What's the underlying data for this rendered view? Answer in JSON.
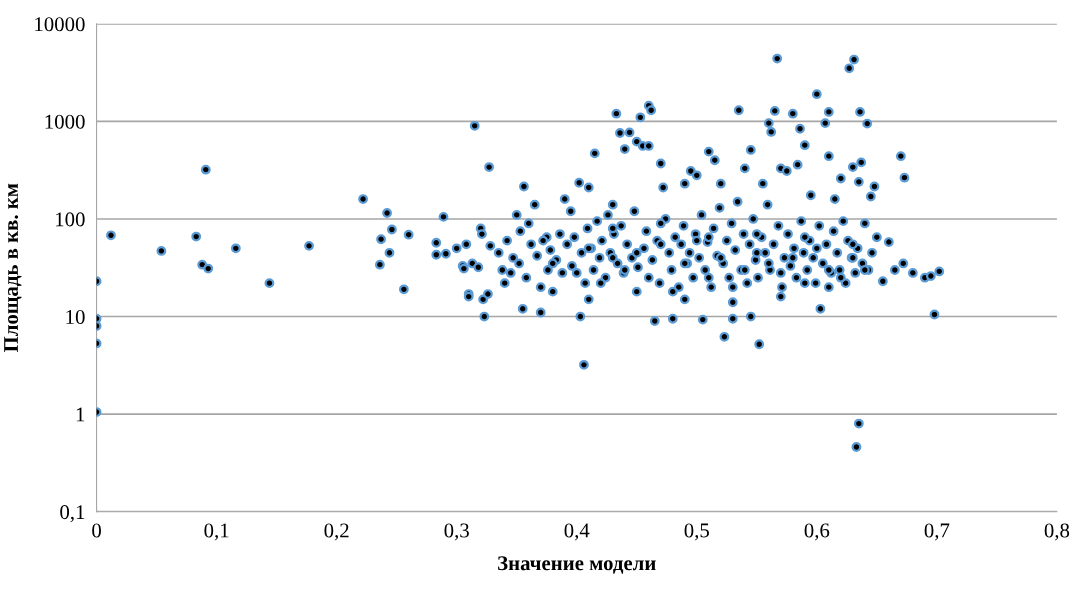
{
  "chart_data": {
    "type": "scatter",
    "xlabel": "Значение модели",
    "ylabel": "Площадь в кв. км",
    "log": "y",
    "xlim": [
      0,
      0.8
    ],
    "xticks": [
      {
        "value": 0,
        "label": "0"
      },
      {
        "value": 0.1,
        "label": "0,1"
      },
      {
        "value": 0.2,
        "label": "0,2"
      },
      {
        "value": 0.3,
        "label": "0,3"
      },
      {
        "value": 0.4,
        "label": "0,4"
      },
      {
        "value": 0.5,
        "label": "0,5"
      },
      {
        "value": 0.6,
        "label": "0,6"
      },
      {
        "value": 0.7,
        "label": "0,7"
      },
      {
        "value": 0.8,
        "label": "0,8"
      }
    ],
    "ylim": [
      0.1,
      10000
    ],
    "yticks": [
      {
        "value": 0.1,
        "label": "0,1"
      },
      1,
      10,
      100,
      1000,
      10000
    ],
    "grid": "y",
    "marker": "circle",
    "legend": false,
    "series": [
      {
        "color": "#5b9bd5",
        "x": [
          0,
          0,
          0,
          0,
          0,
          0.012,
          0.054,
          0.083,
          0.088,
          0.091,
          0.093,
          0.116,
          0.144,
          0.177,
          0.222,
          0.236,
          0.237,
          0.242,
          0.244,
          0.246,
          0.256,
          0.26,
          0.283,
          0.283,
          0.289,
          0.291,
          0.3,
          0.305,
          0.306,
          0.308,
          0.31,
          0.31,
          0.313,
          0.315,
          0.318,
          0.32,
          0.321,
          0.322,
          0.323,
          0.326,
          0.327,
          0.328,
          0.34,
          0.345,
          0.35,
          0.356,
          0.355,
          0.36,
          0.365,
          0.37,
          0.375,
          0.38,
          0.39,
          0.395,
          0.402,
          0.403,
          0.406,
          0.41,
          0.415,
          0.43,
          0.433,
          0.436,
          0.44,
          0.444,
          0.45,
          0.453,
          0.455,
          0.46,
          0.462,
          0.46,
          0.465,
          0.47,
          0.472,
          0.48,
          0.49,
          0.495,
          0.5,
          0.505,
          0.51,
          0.515,
          0.52,
          0.523,
          0.53,
          0.535,
          0.54,
          0.545,
          0.545,
          0.552,
          0.555,
          0.56,
          0.562,
          0.565,
          0.567,
          0.57,
          0.575,
          0.58,
          0.584,
          0.586,
          0.59,
          0.595,
          0.6,
          0.603,
          0.607,
          0.61,
          0.61,
          0.615,
          0.62,
          0.627,
          0.631,
          0.63,
          0.633,
          0.635,
          0.636,
          0.637,
          0.635,
          0.642,
          0.645,
          0.648,
          0.655,
          0.66,
          0.665,
          0.67,
          0.673,
          0.672,
          0.68,
          0.69,
          0.695,
          0.698,
          0.702,
          0.335,
          0.338,
          0.342,
          0.347,
          0.352,
          0.353,
          0.358,
          0.362,
          0.367,
          0.372,
          0.376,
          0.378,
          0.383,
          0.386,
          0.388,
          0.392,
          0.396,
          0.398,
          0.404,
          0.407,
          0.409,
          0.412,
          0.414,
          0.417,
          0.419,
          0.421,
          0.424,
          0.426,
          0.428,
          0.431,
          0.434,
          0.437,
          0.439,
          0.442,
          0.446,
          0.448,
          0.451,
          0.456,
          0.458,
          0.463,
          0.467,
          0.469,
          0.474,
          0.477,
          0.479,
          0.482,
          0.485,
          0.487,
          0.489,
          0.492,
          0.494,
          0.497,
          0.499,
          0.502,
          0.504,
          0.507,
          0.509,
          0.512,
          0.514,
          0.517,
          0.519,
          0.522,
          0.525,
          0.527,
          0.529,
          0.532,
          0.534,
          0.537,
          0.539,
          0.542,
          0.544,
          0.547,
          0.549,
          0.551,
          0.554,
          0.557,
          0.559,
          0.561,
          0.564,
          0.568,
          0.571,
          0.573,
          0.576,
          0.578,
          0.581,
          0.583,
          0.587,
          0.589,
          0.592,
          0.594,
          0.597,
          0.599,
          0.602,
          0.605,
          0.608,
          0.612,
          0.614,
          0.617,
          0.619,
          0.622,
          0.624,
          0.626,
          0.629,
          0.632,
          0.634,
          0.638,
          0.64,
          0.643,
          0.646,
          0.65,
          0.37,
          0.38,
          0.4,
          0.41,
          0.42,
          0.43,
          0.44,
          0.45,
          0.46,
          0.47,
          0.48,
          0.49,
          0.5,
          0.51,
          0.52,
          0.53,
          0.54,
          0.55,
          0.56,
          0.57,
          0.58,
          0.59,
          0.6,
          0.61,
          0.62,
          0.63,
          0.64,
          0.41,
          0.43,
          0.45,
          0.47,
          0.49,
          0.51,
          0.53,
          0.55,
          0.57,
          0.59,
          0.61,
          0.63
        ],
        "values": [
          23,
          9.5,
          8,
          5.3,
          1.05,
          68,
          47,
          66,
          34,
          320,
          31,
          50,
          22,
          53,
          160,
          34,
          62,
          115,
          45,
          78,
          19,
          69,
          43,
          57,
          105,
          44,
          50,
          33,
          31,
          55,
          17,
          16,
          35,
          900,
          32,
          80,
          70,
          15,
          10,
          17,
          340,
          53,
          22,
          28,
          110,
          215,
          12,
          90,
          140,
          11,
          65,
          18,
          160,
          120,
          235,
          10,
          3.2,
          210,
          470,
          140,
          1200,
          760,
          520,
          770,
          620,
          1100,
          560,
          1450,
          1300,
          560,
          9,
          370,
          210,
          9.5,
          230,
          310,
          280,
          9.3,
          490,
          400,
          230,
          6.2,
          9.5,
          1300,
          330,
          510,
          10,
          5.2,
          230,
          960,
          780,
          1280,
          4400,
          330,
          310,
          1200,
          360,
          840,
          570,
          175,
          1900,
          12,
          960,
          1250,
          440,
          160,
          260,
          3500,
          4300,
          340,
          0.46,
          0.8,
          1250,
          380,
          240,
          950,
          170,
          215,
          23,
          58,
          30,
          440,
          265,
          35,
          28,
          25,
          26,
          10.5,
          29,
          45,
          30,
          60,
          40,
          35,
          75,
          25,
          55,
          42,
          60,
          30,
          48,
          38,
          70,
          28,
          55,
          33,
          65,
          45,
          22,
          80,
          50,
          30,
          95,
          40,
          60,
          25,
          110,
          45,
          70,
          35,
          85,
          28,
          55,
          40,
          120,
          32,
          50,
          75,
          38,
          60,
          22,
          100,
          45,
          30,
          65,
          20,
          55,
          85,
          35,
          45,
          25,
          70,
          40,
          110,
          30,
          58,
          20,
          80,
          42,
          130,
          35,
          60,
          25,
          90,
          48,
          150,
          30,
          70,
          22,
          55,
          100,
          38,
          25,
          65,
          45,
          140,
          30,
          55,
          85,
          20,
          40,
          70,
          33,
          50,
          25,
          95,
          45,
          30,
          60,
          40,
          22,
          85,
          35,
          55,
          28,
          75,
          45,
          30,
          95,
          22,
          60,
          40,
          28,
          50,
          35,
          90,
          30,
          45,
          65,
          20,
          35,
          28,
          50,
          22,
          40,
          30,
          45,
          25,
          55,
          18,
          35,
          60,
          25,
          40,
          20,
          30,
          45,
          35,
          28,
          40,
          22,
          50,
          30,
          25,
          40,
          30,
          15,
          80,
          18,
          90,
          15,
          65,
          14,
          70,
          16,
          65,
          20,
          55
        ]
      }
    ]
  }
}
